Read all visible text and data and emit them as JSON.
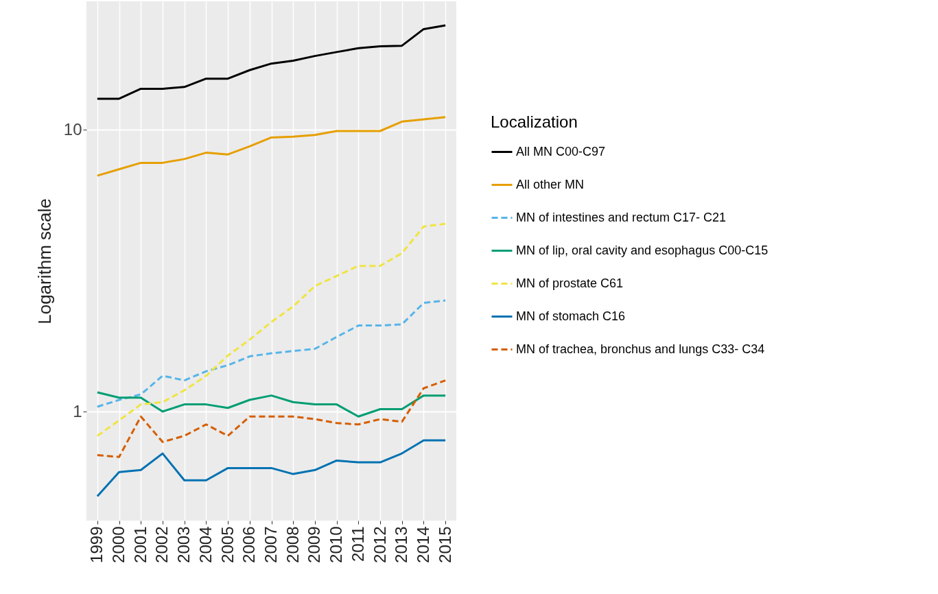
{
  "chart_data": {
    "type": "line",
    "ylabel": "Logarithm scale",
    "legend_title": "Localization",
    "log": true,
    "grid": true,
    "legend": "right",
    "ylim": [
      0.41,
      28.6
    ],
    "yticks": [
      1,
      10
    ],
    "categories": [
      "1999",
      "2000",
      "2001",
      "2002",
      "2003",
      "2004",
      "2005",
      "2006",
      "2007",
      "2008",
      "2009",
      "2010",
      "2011",
      "2012",
      "2013",
      "2014",
      "2015"
    ],
    "series": [
      {
        "name": "All MN C00-C97",
        "color": "#000000",
        "line_style": "solid",
        "values": [
          12.9,
          12.9,
          14.0,
          14.0,
          14.2,
          15.2,
          15.2,
          16.3,
          17.2,
          17.6,
          18.3,
          18.9,
          19.5,
          19.8,
          19.9,
          22.8,
          23.5
        ]
      },
      {
        "name": "All other MN",
        "color": "#e69f00",
        "line_style": "solid",
        "values": [
          6.88,
          7.25,
          7.64,
          7.64,
          7.88,
          8.3,
          8.18,
          8.74,
          9.4,
          9.46,
          9.6,
          9.91,
          9.91,
          9.91,
          10.7,
          10.9,
          11.1
        ]
      },
      {
        "name": "MN of intestines and rectum C17- C21",
        "color": "#56b4e9",
        "line_style": "dashed",
        "values": [
          1.04,
          1.1,
          1.15,
          1.34,
          1.29,
          1.39,
          1.46,
          1.57,
          1.61,
          1.64,
          1.67,
          1.84,
          2.02,
          2.02,
          2.04,
          2.43,
          2.48
        ]
      },
      {
        "name": "MN of lip, oral cavity and esophagus C00-C15",
        "color": "#009e73",
        "line_style": "solid",
        "values": [
          1.17,
          1.12,
          1.12,
          1.0,
          1.06,
          1.06,
          1.03,
          1.1,
          1.14,
          1.08,
          1.06,
          1.06,
          0.96,
          1.02,
          1.02,
          1.14,
          1.14
        ]
      },
      {
        "name": "MN of prostate C61",
        "color": "#f0e442",
        "line_style": "dashed",
        "values": [
          0.82,
          0.93,
          1.06,
          1.08,
          1.19,
          1.34,
          1.58,
          1.8,
          2.08,
          2.36,
          2.79,
          3.03,
          3.29,
          3.29,
          3.65,
          4.54,
          4.64
        ]
      },
      {
        "name": "MN of stomach C16",
        "color": "#0072b2",
        "line_style": "solid",
        "values": [
          0.5,
          0.61,
          0.62,
          0.71,
          0.57,
          0.57,
          0.63,
          0.63,
          0.63,
          0.6,
          0.62,
          0.67,
          0.66,
          0.66,
          0.71,
          0.79,
          0.79
        ]
      },
      {
        "name": "MN of trachea, bronchus and lungs C33- C34",
        "color": "#d55e00",
        "line_style": "dashed",
        "values": [
          0.7,
          0.69,
          0.96,
          0.78,
          0.82,
          0.9,
          0.82,
          0.96,
          0.96,
          0.96,
          0.94,
          0.91,
          0.9,
          0.94,
          0.92,
          1.21,
          1.29
        ]
      }
    ]
  }
}
